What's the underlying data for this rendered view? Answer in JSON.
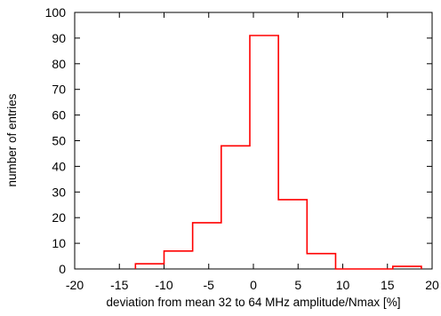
{
  "chart_data": {
    "type": "bar",
    "style": "histogram-step",
    "title": "",
    "xlabel": "deviation from mean 32 to 64 MHz amplitude/Nmax [%]",
    "ylabel": "number of entries",
    "xlim": [
      -20,
      20
    ],
    "ylim": [
      0,
      100
    ],
    "x_ticks": [
      -20,
      -15,
      -10,
      -5,
      0,
      5,
      10,
      15,
      20
    ],
    "y_ticks": [
      0,
      10,
      20,
      30,
      40,
      50,
      60,
      70,
      80,
      90,
      100
    ],
    "x_tick_labels": [
      "-20",
      "-15",
      "-10",
      "-5",
      "0",
      "5",
      "10",
      "15",
      "20"
    ],
    "y_tick_labels": [
      "0",
      "10",
      "20",
      "30",
      "40",
      "50",
      "60",
      "70",
      "80",
      "90",
      "100"
    ],
    "grid": false,
    "legend": "none",
    "line_color": "#ff0000",
    "bin_edges": [
      -13.2,
      -10,
      -6.8,
      -3.6,
      -0.4,
      2.8,
      6.0,
      9.2,
      12.4,
      15.6,
      18.8
    ],
    "values": [
      2,
      7,
      18,
      48,
      91,
      27,
      6,
      0,
      0,
      1
    ]
  }
}
